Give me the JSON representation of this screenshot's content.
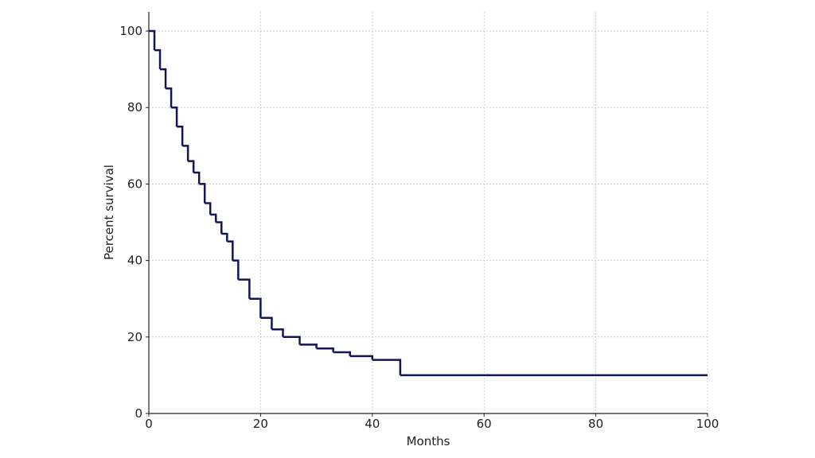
{
  "chart_data": {
    "type": "step",
    "x_label": "Months",
    "y_label": "Percent survival",
    "x": [
      0,
      1,
      2,
      3,
      4,
      5,
      6,
      7,
      8,
      9,
      10,
      11,
      12,
      13,
      14,
      15,
      16,
      18,
      20,
      22,
      24,
      27,
      30,
      33,
      36,
      40,
      45,
      100
    ],
    "series": [
      {
        "color": "#141456",
        "values": [
          100,
          95,
          90,
          85,
          80,
          75,
          70,
          66,
          63,
          60,
          55,
          52,
          50,
          47,
          45,
          40,
          35,
          30,
          25,
          22,
          20,
          18,
          17,
          16,
          15,
          14,
          10,
          10
        ]
      }
    ],
    "xlim": [
      0,
      100
    ],
    "xticks": [
      0,
      20,
      40,
      60,
      80,
      100
    ],
    "ylim": [
      0,
      105
    ],
    "yticks": [
      0,
      20,
      40,
      60,
      80,
      100
    ],
    "grid": true
  }
}
